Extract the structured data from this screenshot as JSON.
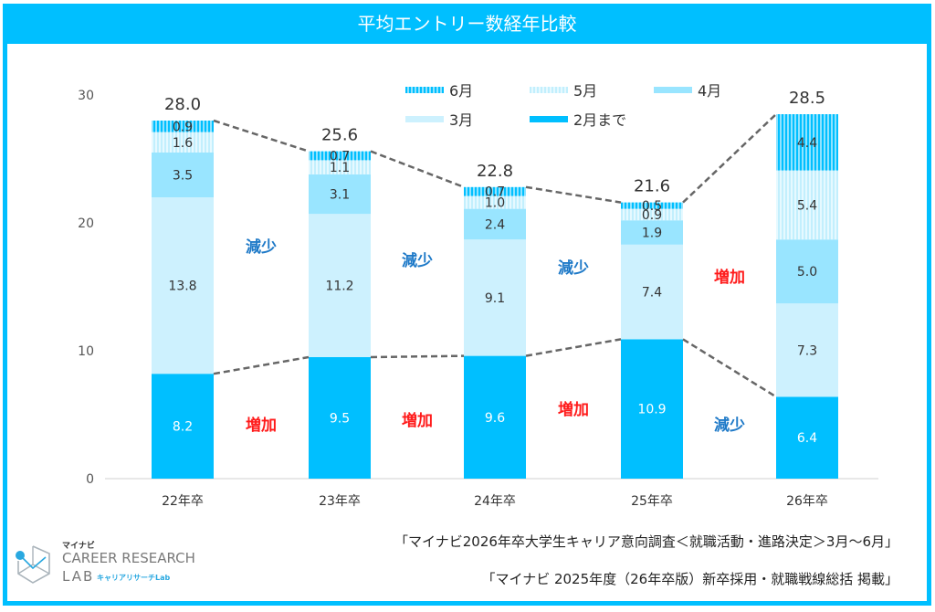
{
  "title": "平均エントリー数経年比較",
  "legend": {
    "row1": [
      {
        "key": "jun",
        "label": "6月"
      },
      {
        "key": "may",
        "label": "5月"
      },
      {
        "key": "apr",
        "label": "4月"
      }
    ],
    "row2": [
      {
        "key": "mar",
        "label": "3月"
      },
      {
        "key": "feb",
        "label": "2月まで"
      }
    ]
  },
  "chart_data": {
    "type": "bar",
    "stacked": true,
    "title": "平均エントリー数経年比較",
    "xlabel": "",
    "ylabel": "",
    "ylim": [
      0,
      30
    ],
    "yticks": [
      0,
      10,
      20,
      30
    ],
    "grid": false,
    "legend_position": "top-right",
    "categories": [
      "22年卒",
      "23年卒",
      "24年卒",
      "25年卒",
      "26年卒"
    ],
    "series": [
      {
        "name": "2月まで",
        "key": "feb",
        "color": "#00bfff",
        "values": [
          8.2,
          9.5,
          9.6,
          10.9,
          6.4
        ]
      },
      {
        "name": "3月",
        "key": "mar",
        "color": "#cdf1fe",
        "values": [
          13.8,
          11.2,
          9.1,
          7.4,
          7.3
        ]
      },
      {
        "name": "4月",
        "key": "apr",
        "color": "#99e5ff",
        "values": [
          3.5,
          3.1,
          2.4,
          1.9,
          5.0
        ]
      },
      {
        "name": "5月",
        "key": "may",
        "color": "#d6f4ff",
        "values": [
          1.6,
          1.1,
          1.0,
          0.9,
          5.4
        ]
      },
      {
        "name": "6月",
        "key": "jun",
        "color": "#33ccff",
        "values": [
          0.9,
          0.7,
          0.7,
          0.5,
          4.4
        ]
      }
    ],
    "totals": [
      "28.0",
      "25.6",
      "22.8",
      "21.6",
      "28.5"
    ],
    "connector_lines": [
      "total",
      "feb"
    ],
    "annotations": {
      "upper": [
        {
          "text": "減少",
          "kind": "decrease"
        },
        {
          "text": "減少",
          "kind": "decrease"
        },
        {
          "text": "減少",
          "kind": "decrease"
        },
        {
          "text": "増加",
          "kind": "increase"
        }
      ],
      "lower": [
        {
          "text": "増加",
          "kind": "increase"
        },
        {
          "text": "増加",
          "kind": "increase"
        },
        {
          "text": "増加",
          "kind": "increase"
        },
        {
          "text": "減少",
          "kind": "decrease"
        }
      ]
    },
    "annotation_colors": {
      "increase": "#ff1a1a",
      "decrease": "#1f7ac8"
    }
  },
  "sources": [
    "「マイナビ2026年卒大学生キャリア意向調査＜就職活動・進路決定＞3月～6月」",
    "「マイナビ 2025年度（26年卒版）新卒採用・就職戦線総括 掲載」"
  ],
  "logo": {
    "brand_small": "マイナビ",
    "line1": "CAREER RESEARCH",
    "line2": "LAB",
    "sub": "キャリアリサーチLab"
  }
}
